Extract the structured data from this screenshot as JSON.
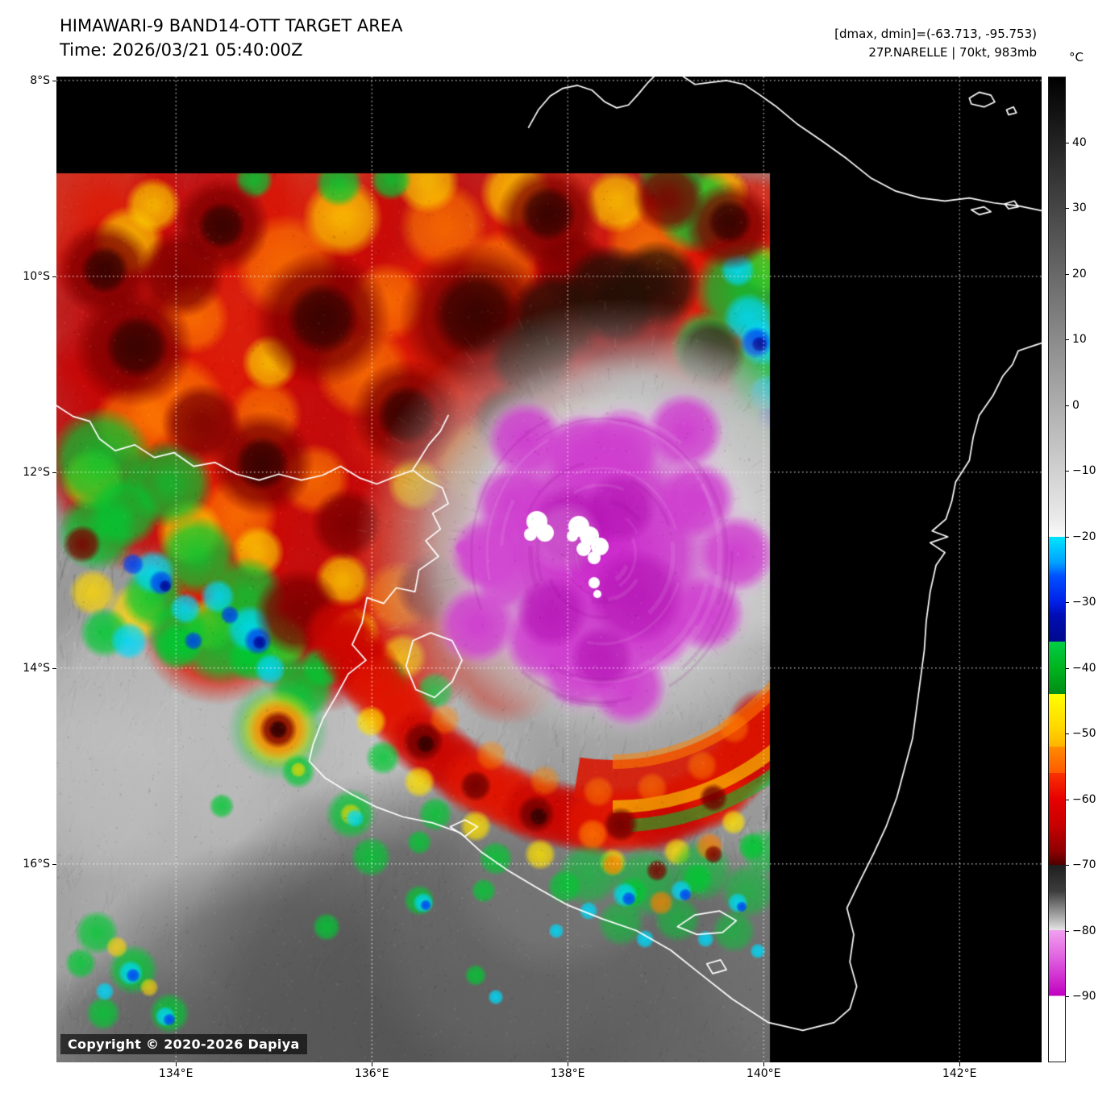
{
  "header": {
    "title": "HIMAWARI-9 BAND14-OTT TARGET AREA",
    "time": "Time: 2026/03/21 05:40:00Z",
    "dmax_dmin": "[dmax, dmin]=(-63.713, -95.753)",
    "storm_info": "27P.NARELLE | 70kt, 983mb"
  },
  "colorbar": {
    "unit": "°C",
    "domain": [
      50,
      -100
    ],
    "tick_values": [
      40,
      30,
      20,
      10,
      0,
      -10,
      -20,
      -30,
      -40,
      -50,
      -60,
      -70,
      -80,
      -90
    ],
    "tick_labels": [
      "40",
      "30",
      "20",
      "10",
      "0",
      "−10",
      "−20",
      "−30",
      "−40",
      "−50",
      "−60",
      "−70",
      "−80",
      "−90"
    ],
    "stops": [
      [
        50,
        "#000000"
      ],
      [
        -17,
        "#e9e9e9"
      ],
      [
        -20,
        "#fafafa"
      ],
      [
        -20,
        "#00e6ff"
      ],
      [
        -24,
        "#00a0ff"
      ],
      [
        -26,
        "#0050ff"
      ],
      [
        -30,
        "#0020e8"
      ],
      [
        -32,
        "#000cb4"
      ],
      [
        -36,
        "#000a8c"
      ],
      [
        -36,
        "#00cd46"
      ],
      [
        -40,
        "#00b41e"
      ],
      [
        -44,
        "#008c14"
      ],
      [
        -44,
        "#ffff00"
      ],
      [
        -49,
        "#ffd800"
      ],
      [
        -52,
        "#ffb400"
      ],
      [
        -52,
        "#ff8c00"
      ],
      [
        -56,
        "#ff5a00"
      ],
      [
        -56,
        "#fa3200"
      ],
      [
        -60,
        "#e60000"
      ],
      [
        -64,
        "#c80000"
      ],
      [
        -68,
        "#8c0000"
      ],
      [
        -70,
        "#500000"
      ],
      [
        -70,
        "#1e1e1e"
      ],
      [
        -74,
        "#3c3c3c"
      ],
      [
        -78,
        "#aaaaaa"
      ],
      [
        -80,
        "#e6e6e6"
      ],
      [
        -80,
        "#f0a0f0"
      ],
      [
        -84,
        "#e164e1"
      ],
      [
        -90,
        "#c000c0"
      ],
      [
        -90,
        "#ffffff"
      ],
      [
        -100,
        "#ffffff"
      ]
    ]
  },
  "axes": {
    "lat": {
      "labels": [
        "8°S",
        "10°S",
        "12°S",
        "14°S",
        "16°S"
      ],
      "values": [
        8,
        10,
        12,
        14,
        16
      ],
      "range": [
        7.96,
        18.03
      ]
    },
    "lon": {
      "labels": [
        "134°E",
        "136°E",
        "138°E",
        "140°E",
        "142°E"
      ],
      "values": [
        134,
        136,
        138,
        140,
        142
      ],
      "range": [
        132.78,
        142.84
      ]
    }
  },
  "map": {
    "copyright": "Copyright © 2020-2026 Dapiya",
    "coastlines": [
      [
        [
          137.6,
          8.48
        ],
        [
          137.7,
          8.3
        ],
        [
          137.82,
          8.16
        ],
        [
          137.95,
          8.08
        ],
        [
          138.1,
          8.05
        ],
        [
          138.25,
          8.1
        ],
        [
          138.38,
          8.22
        ],
        [
          138.5,
          8.28
        ],
        [
          138.62,
          8.25
        ],
        [
          138.72,
          8.14
        ],
        [
          138.82,
          8.02
        ],
        [
          138.88,
          7.96
        ]
      ],
      [
        [
          139.18,
          7.96
        ],
        [
          139.3,
          8.04
        ],
        [
          139.45,
          8.02
        ],
        [
          139.62,
          8.0
        ],
        [
          139.8,
          8.04
        ],
        [
          139.95,
          8.14
        ],
        [
          140.12,
          8.26
        ],
        [
          140.35,
          8.45
        ],
        [
          140.6,
          8.62
        ],
        [
          140.85,
          8.8
        ],
        [
          141.1,
          9.0
        ],
        [
          141.35,
          9.13
        ],
        [
          141.6,
          9.2
        ],
        [
          141.85,
          9.23
        ],
        [
          142.1,
          9.2
        ],
        [
          142.35,
          9.25
        ],
        [
          142.6,
          9.28
        ],
        [
          142.84,
          9.33
        ]
      ],
      [
        [
          142.1,
          8.18
        ],
        [
          142.2,
          8.12
        ],
        [
          142.32,
          8.15
        ],
        [
          142.36,
          8.22
        ],
        [
          142.25,
          8.27
        ],
        [
          142.12,
          8.24
        ],
        [
          142.1,
          8.18
        ]
      ],
      [
        [
          142.48,
          8.3
        ],
        [
          142.55,
          8.27
        ],
        [
          142.58,
          8.33
        ],
        [
          142.5,
          8.35
        ],
        [
          142.48,
          8.3
        ]
      ],
      [
        [
          142.12,
          9.32
        ],
        [
          142.25,
          9.29
        ],
        [
          142.32,
          9.34
        ],
        [
          142.2,
          9.37
        ],
        [
          142.12,
          9.32
        ]
      ],
      [
        [
          142.46,
          9.26
        ],
        [
          142.56,
          9.23
        ],
        [
          142.6,
          9.29
        ],
        [
          142.5,
          9.31
        ],
        [
          142.46,
          9.26
        ]
      ],
      [
        [
          132.78,
          11.32
        ],
        [
          132.95,
          11.43
        ],
        [
          133.12,
          11.48
        ],
        [
          133.22,
          11.66
        ],
        [
          133.38,
          11.78
        ],
        [
          133.58,
          11.72
        ],
        [
          133.78,
          11.85
        ],
        [
          133.98,
          11.8
        ],
        [
          134.18,
          11.94
        ],
        [
          134.4,
          11.9
        ],
        [
          134.62,
          12.02
        ],
        [
          134.85,
          12.08
        ],
        [
          135.05,
          12.02
        ],
        [
          135.28,
          12.08
        ],
        [
          135.5,
          12.03
        ],
        [
          135.68,
          11.94
        ],
        [
          135.88,
          12.06
        ],
        [
          136.05,
          12.12
        ],
        [
          136.25,
          12.04
        ],
        [
          136.42,
          11.98
        ],
        [
          136.55,
          12.08
        ],
        [
          136.72,
          12.16
        ],
        [
          136.78,
          12.32
        ],
        [
          136.62,
          12.42
        ],
        [
          136.7,
          12.58
        ],
        [
          136.55,
          12.7
        ],
        [
          136.68,
          12.86
        ],
        [
          136.48,
          13.0
        ],
        [
          136.44,
          13.22
        ],
        [
          136.25,
          13.18
        ],
        [
          136.12,
          13.34
        ],
        [
          135.95,
          13.28
        ],
        [
          135.9,
          13.54
        ],
        [
          135.8,
          13.76
        ],
        [
          135.94,
          13.92
        ],
        [
          135.76,
          14.06
        ],
        [
          135.64,
          14.28
        ],
        [
          135.5,
          14.52
        ],
        [
          135.4,
          14.78
        ],
        [
          135.36,
          14.95
        ],
        [
          135.52,
          15.12
        ],
        [
          135.78,
          15.28
        ],
        [
          136.05,
          15.42
        ],
        [
          136.32,
          15.52
        ],
        [
          136.62,
          15.58
        ],
        [
          136.9,
          15.68
        ],
        [
          137.12,
          15.88
        ],
        [
          137.38,
          16.06
        ],
        [
          137.68,
          16.24
        ],
        [
          138.0,
          16.42
        ],
        [
          138.35,
          16.56
        ],
        [
          138.7,
          16.68
        ],
        [
          139.05,
          16.88
        ],
        [
          139.35,
          17.12
        ],
        [
          139.68,
          17.38
        ],
        [
          140.05,
          17.62
        ],
        [
          140.4,
          17.7
        ],
        [
          140.72,
          17.62
        ],
        [
          140.88,
          17.48
        ],
        [
          140.95,
          17.25
        ],
        [
          140.88,
          17.0
        ],
        [
          140.92,
          16.72
        ],
        [
          140.85,
          16.45
        ],
        [
          140.98,
          16.18
        ],
        [
          141.12,
          15.9
        ],
        [
          141.25,
          15.62
        ],
        [
          141.36,
          15.32
        ],
        [
          141.44,
          15.02
        ],
        [
          141.52,
          14.72
        ],
        [
          141.56,
          14.42
        ],
        [
          141.6,
          14.12
        ],
        [
          141.64,
          13.82
        ],
        [
          141.66,
          13.52
        ],
        [
          141.7,
          13.22
        ],
        [
          141.76,
          12.95
        ],
        [
          141.85,
          12.82
        ],
        [
          141.7,
          12.72
        ],
        [
          141.88,
          12.66
        ],
        [
          141.72,
          12.6
        ],
        [
          141.86,
          12.48
        ],
        [
          141.92,
          12.3
        ],
        [
          141.96,
          12.1
        ],
        [
          142.1,
          11.88
        ],
        [
          142.14,
          11.64
        ],
        [
          142.2,
          11.42
        ],
        [
          142.34,
          11.22
        ],
        [
          142.44,
          11.02
        ],
        [
          142.54,
          10.9
        ],
        [
          142.6,
          10.76
        ],
        [
          142.78,
          10.7
        ],
        [
          142.84,
          10.68
        ]
      ],
      [
        [
          136.35,
          13.98
        ],
        [
          136.42,
          13.72
        ],
        [
          136.6,
          13.64
        ],
        [
          136.82,
          13.72
        ],
        [
          136.92,
          13.92
        ],
        [
          136.82,
          14.14
        ],
        [
          136.64,
          14.3
        ],
        [
          136.45,
          14.22
        ],
        [
          136.35,
          13.98
        ]
      ],
      [
        [
          136.78,
          11.42
        ],
        [
          136.7,
          11.58
        ],
        [
          136.58,
          11.72
        ],
        [
          136.48,
          11.88
        ],
        [
          136.42,
          11.97
        ]
      ],
      [
        [
          136.8,
          15.62
        ],
        [
          136.95,
          15.55
        ],
        [
          137.08,
          15.62
        ],
        [
          136.95,
          15.72
        ],
        [
          136.8,
          15.62
        ]
      ],
      [
        [
          139.12,
          16.64
        ],
        [
          139.3,
          16.52
        ],
        [
          139.55,
          16.48
        ],
        [
          139.72,
          16.58
        ],
        [
          139.58,
          16.7
        ],
        [
          139.32,
          16.72
        ],
        [
          139.12,
          16.64
        ]
      ],
      [
        [
          139.42,
          17.02
        ],
        [
          139.56,
          16.98
        ],
        [
          139.62,
          17.08
        ],
        [
          139.48,
          17.12
        ],
        [
          139.42,
          17.02
        ]
      ]
    ]
  }
}
